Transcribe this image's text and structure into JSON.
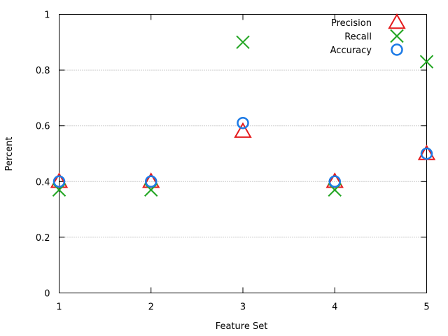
{
  "chart_data": {
    "type": "scatter",
    "xlabel": "Feature Set",
    "ylabel": "Percent",
    "xlim": [
      1,
      5
    ],
    "ylim": [
      0,
      1
    ],
    "x_ticks": [
      "1",
      "2",
      "3",
      "4",
      "5"
    ],
    "y_ticks": [
      "0",
      "0.2",
      "0.4",
      "0.6",
      "0.8",
      "1"
    ],
    "y_tick_values": [
      0,
      0.2,
      0.4,
      0.6,
      0.8,
      1
    ],
    "grid": "horizontal-dotted",
    "legend": "top-right",
    "x": [
      1,
      2,
      3,
      4,
      5
    ],
    "series": [
      {
        "name": "Precision",
        "marker": "triangle",
        "color": "#e41a1c",
        "values": [
          0.4,
          0.4,
          0.58,
          0.4,
          0.5
        ]
      },
      {
        "name": "Recall",
        "marker": "cross",
        "color": "#21a521",
        "values": [
          0.37,
          0.37,
          0.9,
          0.37,
          0.83
        ]
      },
      {
        "name": "Accuracy",
        "marker": "circle",
        "color": "#1c7ae6",
        "values": [
          0.4,
          0.4,
          0.61,
          0.4,
          0.5
        ]
      }
    ]
  }
}
